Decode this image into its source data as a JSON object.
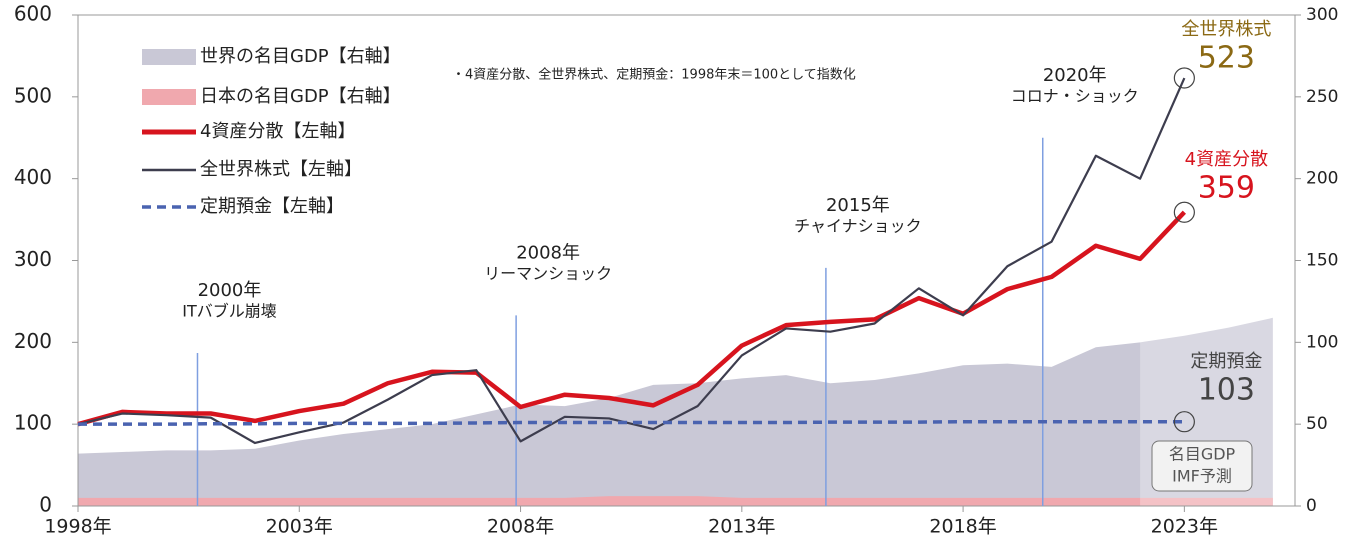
{
  "chart_data": {
    "type": "line",
    "x": [
      1998,
      1999,
      2000,
      2001,
      2002,
      2003,
      2004,
      2005,
      2006,
      2007,
      2008,
      2009,
      2010,
      2011,
      2012,
      2013,
      2014,
      2015,
      2016,
      2017,
      2018,
      2019,
      2020,
      2021,
      2022,
      2023,
      2024,
      2025
    ],
    "xlim": [
      1998,
      2025.5
    ],
    "xticks": [
      {
        "value": 1998,
        "label": "1998年"
      },
      {
        "value": 2003,
        "label": "2003年"
      },
      {
        "value": 2008,
        "label": "2008年"
      },
      {
        "value": 2013,
        "label": "2013年"
      },
      {
        "value": 2018,
        "label": "2018年"
      },
      {
        "value": 2023,
        "label": "2023年"
      }
    ],
    "ylim": [
      0,
      600
    ],
    "yticks": [
      0,
      100,
      200,
      300,
      400,
      500,
      600
    ],
    "y2lim": [
      0,
      300
    ],
    "y2ticks": [
      0,
      50,
      100,
      150,
      200,
      250,
      300
    ],
    "note": "・4資産分散、全世界株式、定期預金：1998年末＝100として指数化",
    "forecast_from": 2022,
    "forecast_label": [
      "名目GDP",
      "IMF予測"
    ],
    "series": [
      {
        "name": "世界の名目GDP【右軸】",
        "kind": "area",
        "axis": "y2",
        "color": "#c9c8d6",
        "values": [
          32,
          33,
          34,
          34,
          35,
          40,
          44,
          47,
          50,
          56,
          62,
          61,
          66,
          74,
          75,
          78,
          80,
          75,
          77,
          81,
          86,
          87,
          85,
          97,
          100,
          104,
          109,
          115
        ]
      },
      {
        "name": "日本の名目GDP【右軸】",
        "kind": "area",
        "axis": "y2",
        "color": "#f0a8ae",
        "values": [
          5,
          5,
          5,
          5,
          5,
          5,
          5,
          5,
          5,
          5,
          5,
          5,
          6,
          6,
          6,
          5,
          5,
          5,
          5,
          5,
          5,
          5,
          5,
          5,
          5,
          5,
          5,
          5
        ]
      },
      {
        "name": "4資産分散【左軸】",
        "kind": "line",
        "color": "#d7141e",
        "end_label": "4資産分散",
        "values": [
          100,
          115,
          113,
          113,
          104,
          116,
          125,
          150,
          164,
          163,
          121,
          136,
          132,
          123,
          148,
          196,
          221,
          225,
          228,
          254,
          235,
          265,
          280,
          318,
          302,
          359,
          null,
          null
        ]
      },
      {
        "name": "全世界株式【左軸】",
        "kind": "line",
        "color": "#3d3d4e",
        "end_label": "全世界株式",
        "end_color": "#8b6914",
        "values": [
          100,
          113,
          111,
          108,
          77,
          90,
          102,
          130,
          160,
          166,
          79,
          109,
          107,
          94,
          122,
          184,
          217,
          213,
          223,
          266,
          233,
          293,
          323,
          428,
          400,
          523,
          null,
          null
        ]
      },
      {
        "name": "定期預金【左軸】",
        "kind": "dashed",
        "color": "#4a63b0",
        "end_label": "定期預金",
        "end_color": "#444444",
        "values": [
          100,
          100,
          100,
          100.5,
          100.5,
          101,
          101,
          101,
          101,
          101.5,
          102,
          102,
          102,
          102,
          102,
          102,
          102,
          102.5,
          102.5,
          102.5,
          103,
          103,
          103,
          103,
          103,
          103,
          null,
          null
        ]
      }
    ],
    "annotations": [
      {
        "label": [
          "2000年",
          "ITバブル崩壊"
        ],
        "x": 2000.7,
        "y": 187
      },
      {
        "label": [
          "2008年",
          "リーマンショック"
        ],
        "x": 2007.9,
        "y": 233
      },
      {
        "label": [
          "2015年",
          "チャイナショック"
        ],
        "x": 2014.9,
        "y": 291
      },
      {
        "label": [
          "2020年",
          "コロナ・ショック"
        ],
        "x": 2019.8,
        "y": 450
      }
    ]
  }
}
